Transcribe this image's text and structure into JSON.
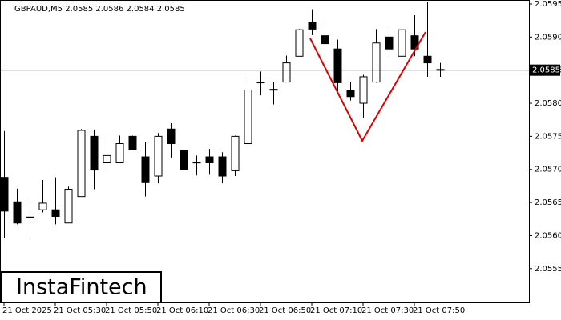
{
  "chart_data": {
    "type": "candlestick",
    "title": "GBPAUD,M5  2.0585 2.0586 2.0584 2.0585",
    "watermark": "InstaFintech",
    "categories": [
      "21 Oct 2025",
      null,
      null,
      null,
      "21 Oct 05:30",
      null,
      null,
      null,
      "21 Oct 05:50",
      null,
      null,
      null,
      "21 Oct 06:10",
      null,
      null,
      null,
      "21 Oct 06:30",
      null,
      null,
      null,
      "21 Oct 06:50",
      null,
      null,
      null,
      "21 Oct 07:10",
      null,
      null,
      null,
      "21 Oct 07:30",
      null,
      null,
      null,
      "21 Oct 07:50",
      null,
      null
    ],
    "open": [
      2.05688,
      2.05651,
      2.05628,
      2.05639,
      2.05639,
      2.05619,
      2.05659,
      2.0575,
      2.0571,
      2.0571,
      2.0575,
      2.05719,
      2.0569,
      2.05761,
      2.05729,
      2.05711,
      2.05719,
      2.05719,
      2.05698,
      2.05739,
      2.05832,
      2.05821,
      2.05832,
      2.05871,
      2.05922,
      2.05902,
      2.05882,
      2.0582,
      2.058,
      2.05832,
      2.059,
      2.05871,
      2.05902,
      2.05871,
      2.05851
    ],
    "high": [
      2.05758,
      2.05671,
      2.05651,
      2.05684,
      2.05688,
      2.05674,
      2.05761,
      2.05759,
      2.05751,
      2.05751,
      2.05751,
      2.05742,
      2.05755,
      2.0577,
      2.05729,
      2.05721,
      2.05731,
      2.05726,
      2.05751,
      2.05833,
      2.05848,
      2.05832,
      2.05872,
      2.05912,
      2.05942,
      2.05922,
      2.05896,
      2.05832,
      2.05843,
      2.05912,
      2.05912,
      2.05912,
      2.05933,
      2.05953,
      2.05861
    ],
    "low": [
      2.05597,
      2.05617,
      2.05589,
      2.05635,
      2.05617,
      2.05619,
      2.05659,
      2.0567,
      2.05698,
      2.0571,
      2.0573,
      2.05659,
      2.05679,
      2.05718,
      2.057,
      2.05691,
      2.05692,
      2.05679,
      2.0569,
      2.05739,
      2.05812,
      2.05798,
      2.05832,
      2.05871,
      2.05903,
      2.05879,
      2.05818,
      2.05804,
      2.05778,
      2.05831,
      2.05872,
      2.05851,
      2.05871,
      2.0584,
      2.0584
    ],
    "close": [
      2.05637,
      2.05619,
      2.05628,
      2.05649,
      2.05629,
      2.0567,
      2.05759,
      2.05699,
      2.05721,
      2.05739,
      2.0573,
      2.0568,
      2.0575,
      2.05739,
      2.057,
      2.05711,
      2.0571,
      2.0569,
      2.0575,
      2.0582,
      2.05832,
      2.05821,
      2.05861,
      2.05911,
      2.05912,
      2.0589,
      2.05831,
      2.0581,
      2.0584,
      2.05891,
      2.05882,
      2.05911,
      2.05882,
      2.05861,
      2.05851
    ],
    "up_color": "#ffffff",
    "down_color": "#000000",
    "ylim": [
      2.05499,
      2.05956
    ],
    "yticks": [
      2.0555,
      {
        "value": 2.056,
        "label": "2.0560"
      },
      2.0565,
      {
        "value": 2.057,
        "label": "2.0570"
      },
      2.0575,
      {
        "value": 2.058,
        "label": "2.0580"
      },
      2.0585,
      {
        "value": 2.059,
        "label": "2.0590"
      },
      2.0595
    ],
    "last_price": 2.0585
  }
}
